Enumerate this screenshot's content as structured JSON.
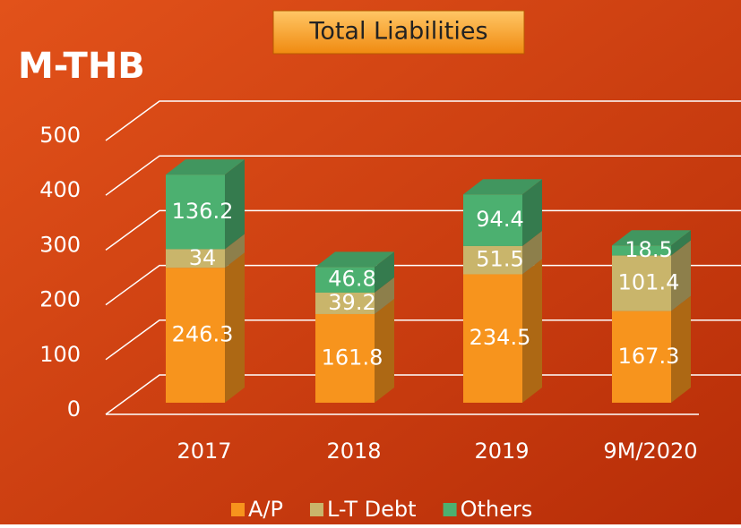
{
  "chart_data": {
    "type": "bar3d_stacked",
    "title": "Total Liabilities",
    "y_label": "M-THB",
    "categories": [
      "2017",
      "2018",
      "2019",
      "9M/2020"
    ],
    "series": [
      {
        "name": "A/P",
        "color": "#f7941d",
        "values": [
          246.3,
          161.8,
          234.5,
          167.3
        ]
      },
      {
        "name": "L-T Debt",
        "color": "#c9b56b",
        "values": [
          34,
          39.2,
          51.5,
          101.4
        ]
      },
      {
        "name": "Others",
        "color": "#4cb070",
        "values": [
          136.2,
          46.8,
          94.4,
          18.5
        ]
      }
    ],
    "ylim": [
      0,
      500
    ],
    "yticks": [
      0,
      100,
      200,
      300,
      400,
      500
    ],
    "grid": true,
    "legend": "bottom"
  }
}
